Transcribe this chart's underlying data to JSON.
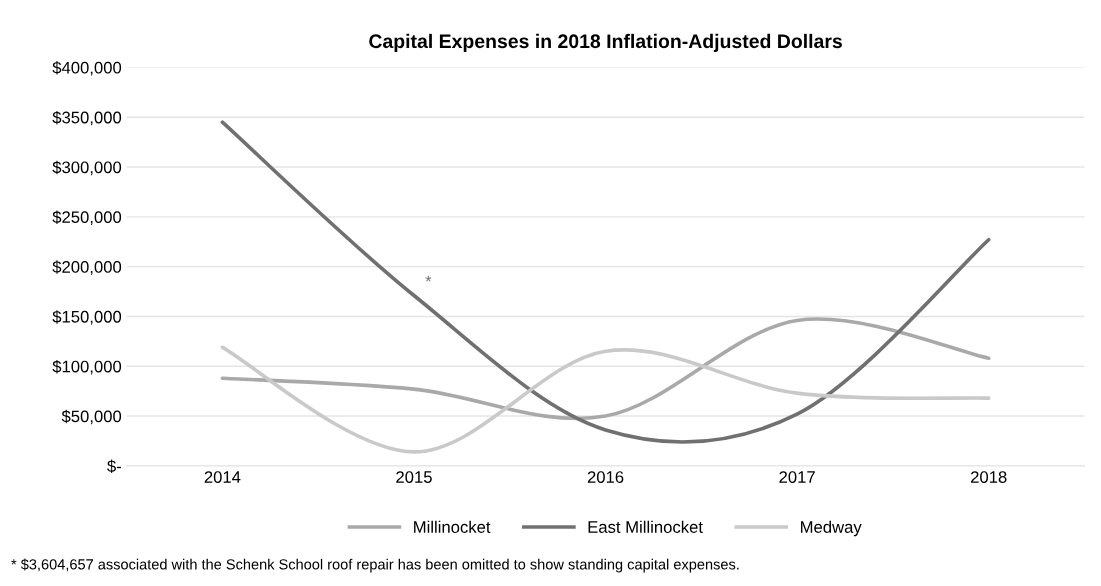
{
  "chart_data": {
    "type": "line",
    "title": "Capital Expenses in 2018 Inflation-Adjusted Dollars",
    "categories": [
      "2014",
      "2015",
      "2016",
      "2017",
      "2018"
    ],
    "series": [
      {
        "name": "Millinocket",
        "color": "#a9a9a9",
        "values": [
          88000,
          77000,
          50000,
          146000,
          108000
        ]
      },
      {
        "name": "East Millinocket",
        "color": "#707070",
        "values": [
          345000,
          171000,
          36000,
          52000,
          227000
        ]
      },
      {
        "name": "Medway",
        "color": "#c9c9c9",
        "values": [
          119000,
          14000,
          115000,
          73000,
          68000
        ]
      }
    ],
    "ylim": [
      0,
      400000
    ],
    "yticks": [
      {
        "value": 0,
        "label": "$-"
      },
      {
        "value": 50000,
        "label": "$50,000"
      },
      {
        "value": 100000,
        "label": "$100,000"
      },
      {
        "value": 150000,
        "label": "$150,000"
      },
      {
        "value": 200000,
        "label": "$200,000"
      },
      {
        "value": 250000,
        "label": "$250,000"
      },
      {
        "value": 300000,
        "label": "$300,000"
      },
      {
        "value": 350000,
        "label": "$350,000"
      },
      {
        "value": 400000,
        "label": "$400,000"
      }
    ],
    "grid": "y",
    "legend": "bottom",
    "annotations": [
      {
        "text": "*",
        "x": "2015",
        "y": 171000
      },
      "* $3,604,657 associated with the Schenk School roof repair has been omitted to show standing capital expenses."
    ]
  }
}
